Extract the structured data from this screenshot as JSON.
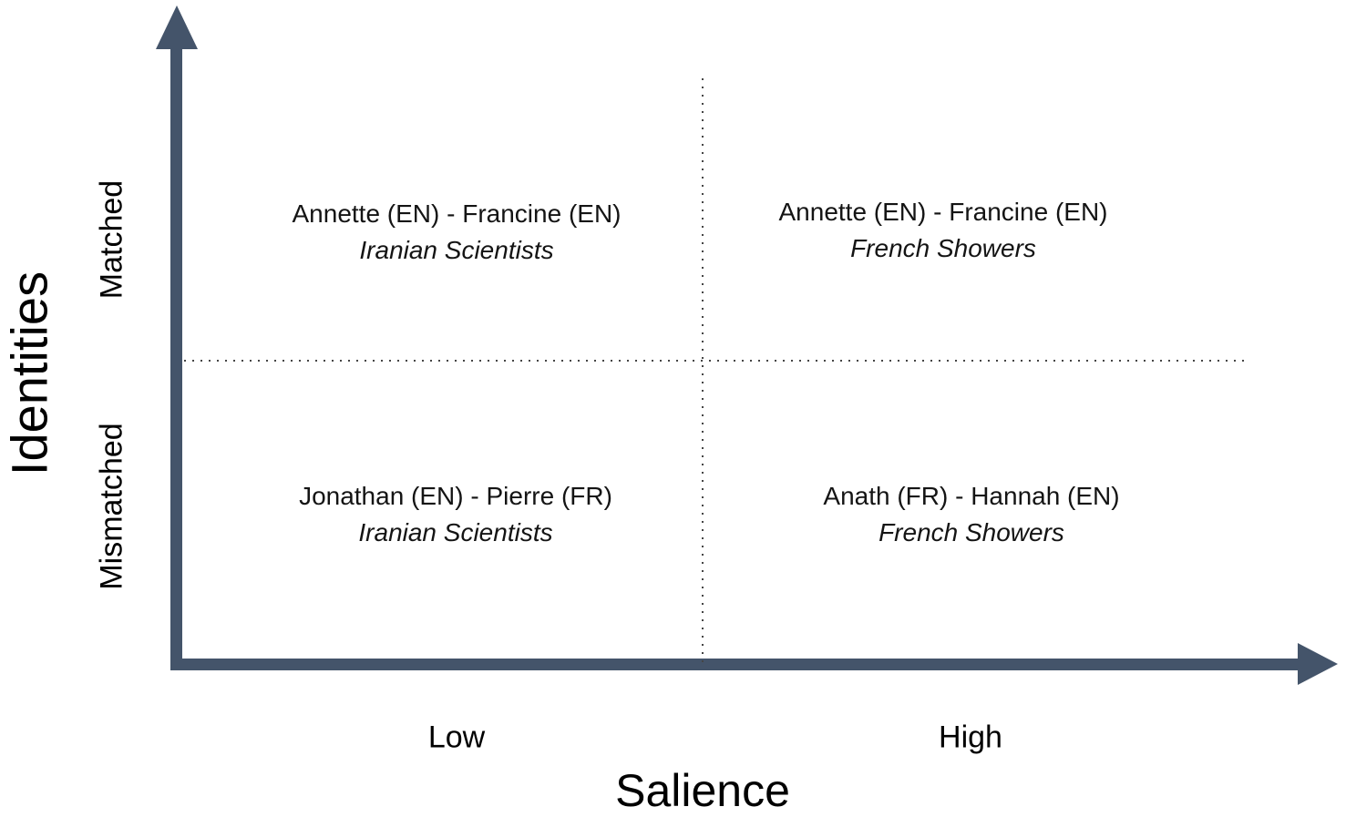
{
  "figure": {
    "type": "quadrant-diagram",
    "x_axis": {
      "title": "Salience",
      "low_label": "Low",
      "high_label": "High"
    },
    "y_axis": {
      "title": "Identities",
      "top_label": "Matched",
      "bottom_label": "Mismatched"
    },
    "quadrants": {
      "top_left": {
        "pair": "Annette (EN) - Francine (EN)",
        "condition": "Iranian Scientists"
      },
      "top_right": {
        "pair": "Annette (EN) - Francine (EN)",
        "condition": "French Showers"
      },
      "bottom_left": {
        "pair": "Jonathan (EN) - Pierre (FR)",
        "condition": "Iranian Scientists"
      },
      "bottom_right": {
        "pair": "Anath (FR) - Hannah (EN)",
        "condition": "French Showers"
      }
    },
    "colors": {
      "axis": "#44546A",
      "dotted_divider": "#454545",
      "text": "#141414",
      "background": "#ffffff"
    }
  }
}
